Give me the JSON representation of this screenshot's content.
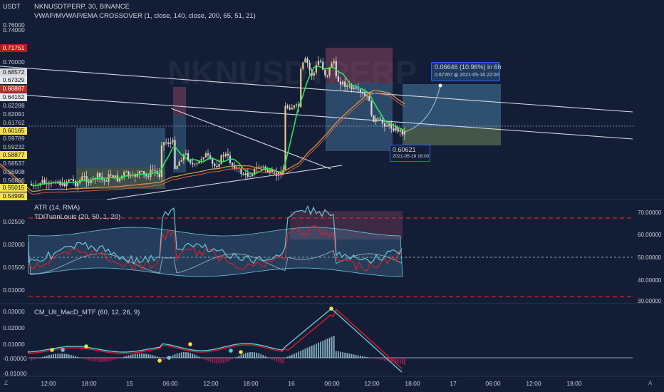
{
  "header": {
    "currency": "USDT",
    "symbol_title": "NKNUSDTPERP, 30, BINANCE",
    "indicator_title": "VWAP/MVWAP/EMA CROSSOVER (1, close, 140, close, 200, 65, 51, 21)",
    "watermark": "NKNUSDTPERP"
  },
  "price_axis": {
    "ticks": [
      "0.76000",
      "0.74000",
      "0.70000",
      "0.62288",
      "0.62091",
      "0.61762",
      "0.59789",
      "0.59232",
      "0.58537",
      "0.56908",
      "0.56806"
    ],
    "tags": [
      {
        "text": "0.71751",
        "bg": "#b71c1c",
        "fg": "#ffffff"
      },
      {
        "text": "0.68572",
        "bg": "#d6d8de",
        "fg": "#131722"
      },
      {
        "text": "0.67329",
        "bg": "#e6e8ee",
        "fg": "#131722"
      },
      {
        "text": "0.66887",
        "bg": "#c62828",
        "fg": "#ffffff"
      },
      {
        "text": "0.64152",
        "bg": "#e6e8ee",
        "fg": "#131722"
      },
      {
        "text": "0.60165",
        "bg": "#f5e04a",
        "fg": "#131722"
      },
      {
        "text": "0.58877",
        "bg": "#f5e04a",
        "fg": "#131722"
      },
      {
        "text": "0.55015",
        "bg": "#f5e04a",
        "fg": "#131722"
      },
      {
        "text": "0.54995",
        "bg": "#f5e04a",
        "fg": "#131722"
      }
    ]
  },
  "annotations": {
    "measure_main": "0.06646 (10.96%) in 6h",
    "measure_sub": "0.67267 ◍ 2021-05-16  22:00",
    "entry_price": "0.60621",
    "entry_time": "2021-05-16 16:00"
  },
  "atr_pane": {
    "title_1": "ATR (14, RMA)",
    "title_2": "TDITuanLouis (20, 50, 1, 20)",
    "left_ticks": [
      "0.02500",
      "0.02000",
      "0.01500",
      "0.01000"
    ],
    "right_ticks": [
      "70.00000",
      "60.00000",
      "50.00000",
      "40.00000",
      "30.00000"
    ]
  },
  "macd_pane": {
    "title": "CM_Ult_MacD_MTF (60, 12, 26, 9)",
    "left_ticks": [
      "0.03000",
      "0.02000",
      "0.01000",
      "-0.00000",
      "-0.01000"
    ]
  },
  "time_axis": {
    "labels": [
      "12:00",
      "18:00",
      "15",
      "06:00",
      "12:00",
      "18:00",
      "16",
      "06:00",
      "12:00",
      "18:00",
      "17",
      "06:00",
      "12:00",
      "18:00"
    ],
    "left_icon_text": "Z",
    "right_icon_text": "A"
  },
  "colors": {
    "background": "#131e36",
    "up_candle": "#e6c88f",
    "down_candle": "#d7d9e0",
    "vwap_green": "#2ee55a",
    "ema_orange": "#e0a040",
    "ema_red": "#d65a4a",
    "trend_line": "#d6dae4",
    "tdi_cyan": "#64c8d8",
    "tdi_red": "#e02020",
    "macd_red": "#d41a2a",
    "macd_cyan": "#6cd0e0"
  }
}
